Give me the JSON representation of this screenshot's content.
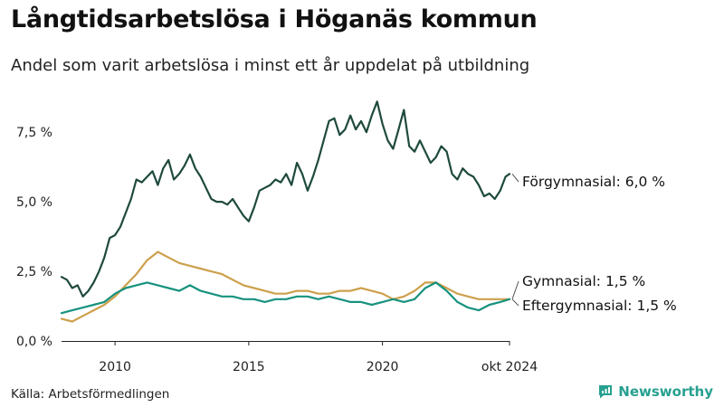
{
  "title": "Långtidsarbetslösa i Höganäs kommun",
  "subtitle": "Andel som varit arbetslösa i minst ett år uppdelat på utbildning",
  "source": "Källa: Arbetsförmedlingen",
  "brand": "Newsworthy",
  "colors": {
    "forgymnasial": "#1f4a3e",
    "gymnasial": "#cda04c",
    "eftergymnasial": "#17927e",
    "brand": "#27a090"
  },
  "chart_data": {
    "type": "line",
    "title": "Långtidsarbetslösa i Höganäs kommun",
    "subtitle": "Andel som varit arbetslösa i minst ett år uppdelat på utbildning",
    "ylim": [
      0,
      9
    ],
    "y_ticks": [
      0,
      2.5,
      5.0,
      7.5
    ],
    "y_tick_labels": [
      "0,0 %",
      "2,5 %",
      "5,0 %",
      "7,5 %"
    ],
    "x_ticks": [
      2010,
      2015,
      2020,
      2024.75
    ],
    "x_tick_labels": [
      "2010",
      "2015",
      "2020",
      "okt 2024"
    ],
    "xlim": [
      2008.0,
      2024.75
    ],
    "grid": false,
    "series": [
      {
        "key": "forgymnasial",
        "label": "Förgymnasial: 6,0 %",
        "x": [
          2008.0,
          2008.2,
          2008.4,
          2008.6,
          2008.8,
          2009.0,
          2009.2,
          2009.4,
          2009.6,
          2009.8,
          2010.0,
          2010.2,
          2010.4,
          2010.6,
          2010.8,
          2011.0,
          2011.2,
          2011.4,
          2011.6,
          2011.8,
          2012.0,
          2012.2,
          2012.4,
          2012.6,
          2012.8,
          2013.0,
          2013.2,
          2013.4,
          2013.6,
          2013.8,
          2014.0,
          2014.2,
          2014.4,
          2014.6,
          2014.8,
          2015.0,
          2015.2,
          2015.4,
          2015.6,
          2015.8,
          2016.0,
          2016.2,
          2016.4,
          2016.6,
          2016.8,
          2017.0,
          2017.2,
          2017.4,
          2017.6,
          2017.8,
          2018.0,
          2018.2,
          2018.4,
          2018.6,
          2018.8,
          2019.0,
          2019.2,
          2019.4,
          2019.6,
          2019.8,
          2020.0,
          2020.2,
          2020.4,
          2020.6,
          2020.8,
          2021.0,
          2021.2,
          2021.4,
          2021.6,
          2021.8,
          2022.0,
          2022.2,
          2022.4,
          2022.6,
          2022.8,
          2023.0,
          2023.2,
          2023.4,
          2023.6,
          2023.8,
          2024.0,
          2024.2,
          2024.4,
          2024.6,
          2024.75
        ],
        "y": [
          2.3,
          2.2,
          1.9,
          2.0,
          1.6,
          1.8,
          2.1,
          2.5,
          3.0,
          3.7,
          3.8,
          4.1,
          4.6,
          5.1,
          5.8,
          5.7,
          5.9,
          6.1,
          5.6,
          6.2,
          6.5,
          5.8,
          6.0,
          6.3,
          6.7,
          6.2,
          5.9,
          5.5,
          5.1,
          5.0,
          5.0,
          4.9,
          5.1,
          4.8,
          4.5,
          4.3,
          4.8,
          5.4,
          5.5,
          5.6,
          5.8,
          5.7,
          6.0,
          5.6,
          6.4,
          6.0,
          5.4,
          5.9,
          6.5,
          7.2,
          7.9,
          8.0,
          7.4,
          7.6,
          8.1,
          7.6,
          7.9,
          7.5,
          8.1,
          8.6,
          7.8,
          7.2,
          6.9,
          7.6,
          8.3,
          7.0,
          6.8,
          7.2,
          6.8,
          6.4,
          6.6,
          7.0,
          6.8,
          6.0,
          5.8,
          6.2,
          6.0,
          5.9,
          5.6,
          5.2,
          5.3,
          5.1,
          5.4,
          5.9,
          6.0
        ]
      },
      {
        "key": "gymnasial",
        "label": "Gymnasial: 1,5 %",
        "x": [
          2008.0,
          2008.4,
          2008.8,
          2009.2,
          2009.6,
          2010.0,
          2010.4,
          2010.8,
          2011.2,
          2011.6,
          2012.0,
          2012.4,
          2012.8,
          2013.2,
          2013.6,
          2014.0,
          2014.4,
          2014.8,
          2015.2,
          2015.6,
          2016.0,
          2016.4,
          2016.8,
          2017.2,
          2017.6,
          2018.0,
          2018.4,
          2018.8,
          2019.2,
          2019.6,
          2020.0,
          2020.4,
          2020.8,
          2021.2,
          2021.6,
          2022.0,
          2022.4,
          2022.8,
          2023.2,
          2023.6,
          2024.0,
          2024.4,
          2024.75
        ],
        "y": [
          0.8,
          0.7,
          0.9,
          1.1,
          1.3,
          1.6,
          2.0,
          2.4,
          2.9,
          3.2,
          3.0,
          2.8,
          2.7,
          2.6,
          2.5,
          2.4,
          2.2,
          2.0,
          1.9,
          1.8,
          1.7,
          1.7,
          1.8,
          1.8,
          1.7,
          1.7,
          1.8,
          1.8,
          1.9,
          1.8,
          1.7,
          1.5,
          1.6,
          1.8,
          2.1,
          2.1,
          1.9,
          1.7,
          1.6,
          1.5,
          1.5,
          1.5,
          1.5
        ]
      },
      {
        "key": "eftergymnasial",
        "label": "Eftergymnasial: 1,5 %",
        "x": [
          2008.0,
          2008.4,
          2008.8,
          2009.2,
          2009.6,
          2010.0,
          2010.4,
          2010.8,
          2011.2,
          2011.6,
          2012.0,
          2012.4,
          2012.8,
          2013.2,
          2013.6,
          2014.0,
          2014.4,
          2014.8,
          2015.2,
          2015.6,
          2016.0,
          2016.4,
          2016.8,
          2017.2,
          2017.6,
          2018.0,
          2018.4,
          2018.8,
          2019.2,
          2019.6,
          2020.0,
          2020.4,
          2020.8,
          2021.2,
          2021.6,
          2022.0,
          2022.4,
          2022.8,
          2023.2,
          2023.6,
          2024.0,
          2024.4,
          2024.75
        ],
        "y": [
          1.0,
          1.1,
          1.2,
          1.3,
          1.4,
          1.7,
          1.9,
          2.0,
          2.1,
          2.0,
          1.9,
          1.8,
          2.0,
          1.8,
          1.7,
          1.6,
          1.6,
          1.5,
          1.5,
          1.4,
          1.5,
          1.5,
          1.6,
          1.6,
          1.5,
          1.6,
          1.5,
          1.4,
          1.4,
          1.3,
          1.4,
          1.5,
          1.4,
          1.5,
          1.9,
          2.1,
          1.8,
          1.4,
          1.2,
          1.1,
          1.3,
          1.4,
          1.5
        ]
      }
    ]
  }
}
